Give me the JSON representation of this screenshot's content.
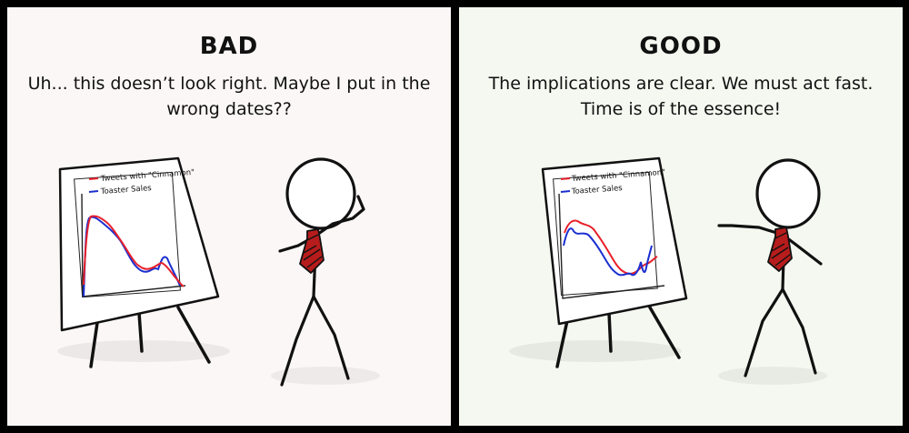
{
  "panels": [
    {
      "heading": "BAD",
      "caption": "Uh... this doesn’t look right. Maybe I put in the wrong dates??",
      "chart": {
        "legend": [
          {
            "label": "Tweets with \"Cinnamon\"",
            "color": "#e8202a"
          },
          {
            "label": "Toaster Sales",
            "color": "#1b2fd0"
          }
        ]
      }
    },
    {
      "heading": "GOOD",
      "caption": "The implications are clear. We must act fast. Time is of the essence!",
      "chart": {
        "legend": [
          {
            "label": "Tweets with \"Cinnamon\"",
            "color": "#e8202a"
          },
          {
            "label": "Toaster Sales",
            "color": "#1b2fd0"
          }
        ]
      }
    }
  ],
  "colors": {
    "frame": "#000000",
    "bad_background": "#fcf7f7",
    "good_background": "#f5f8f0",
    "tie": "#b71c1c"
  }
}
